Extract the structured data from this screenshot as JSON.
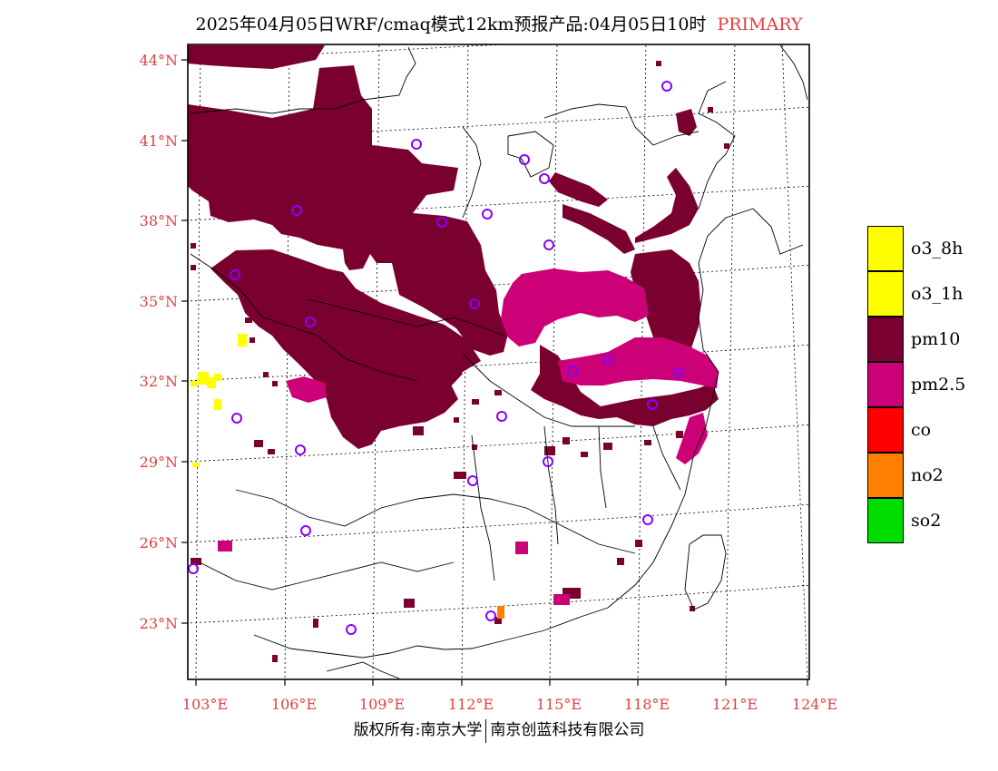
{
  "title": {
    "text": "2025年04月05日WRF/cmaq模式12km预报产品:04月05日10时",
    "tag": "PRIMARY"
  },
  "axes": {
    "lat_labels": [
      "44°N",
      "41°N",
      "38°N",
      "35°N",
      "32°N",
      "29°N",
      "26°N",
      "23°N"
    ],
    "lon_labels": [
      "103°E",
      "106°E",
      "109°E",
      "112°E",
      "115°E",
      "118°E",
      "121°E",
      "124°E"
    ]
  },
  "legend": [
    {
      "label": "o3_8h",
      "color": "#ffff00"
    },
    {
      "label": "o3_1h",
      "color": "#ffff00"
    },
    {
      "label": "pm10",
      "color": "#7a0030"
    },
    {
      "label": "pm2.5",
      "color": "#cc0077"
    },
    {
      "label": "co",
      "color": "#ff0000"
    },
    {
      "label": "no2",
      "color": "#ff7f00"
    },
    {
      "label": "so2",
      "color": "#00dd00"
    }
  ],
  "colors": {
    "pm10": "#7a0030",
    "pm25": "#cc0077",
    "o3": "#ffff00",
    "no2": "#ff7f00",
    "station": "#8800ff",
    "tick": "#e04040"
  },
  "footer": {
    "left": "版权所有:南京大学",
    "right": "南京创蓝科技有限公司"
  }
}
